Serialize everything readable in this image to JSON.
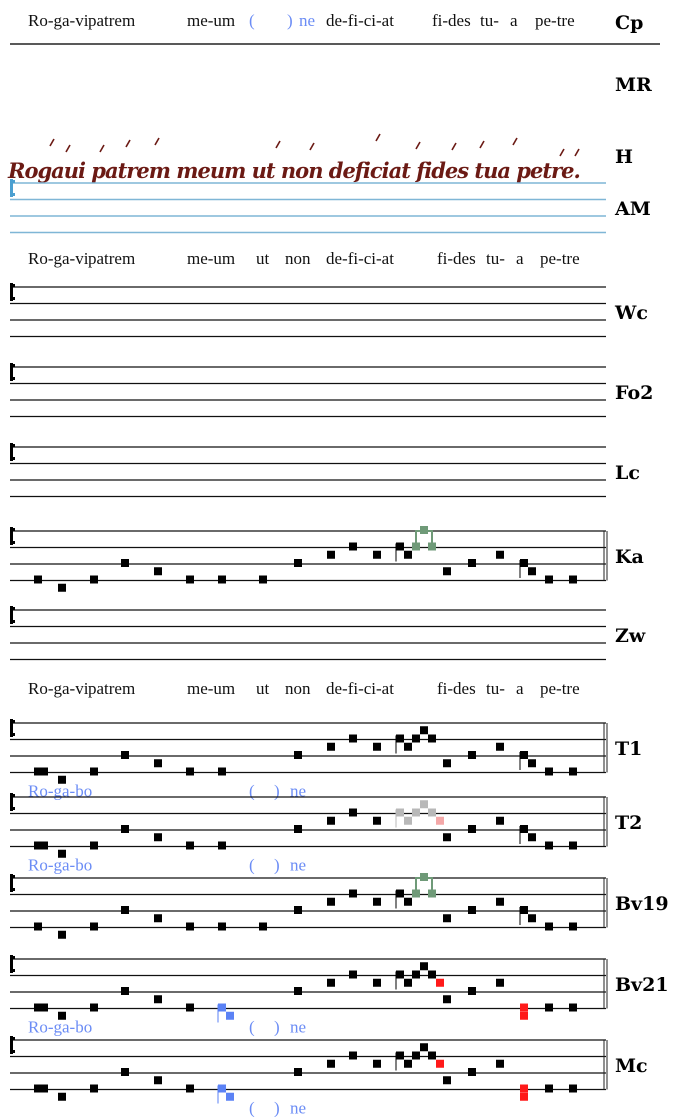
{
  "colors": {
    "k": "#000000",
    "g": "#6f9a78",
    "r": "#ff1a1a",
    "b": "#5b82f5",
    "y": "#b8b8b8",
    "p": "#f4a8a8",
    "ms_ink": "#6b1a14",
    "am_staff": "#7fb6d6"
  },
  "top_row": {
    "label": "Cp",
    "words": [
      {
        "t": "Ro-ga-vi"
      },
      {
        "t": "patrem"
      },
      {
        "t": "me-um"
      },
      {
        "t": "(",
        "blue": true
      },
      {
        "t": ")",
        "blue": true
      },
      {
        "t": "ne",
        "blue": true
      },
      {
        "t": "de-fi-ci-at"
      },
      {
        "t": "fi-des"
      },
      {
        "t": "tu-"
      },
      {
        "t": "a"
      },
      {
        "t": "pe-tre"
      }
    ]
  },
  "lyrics_row": [
    "Ro-ga-vi",
    "patrem",
    "me-um",
    "ut",
    "non",
    "de-fi-ci-at",
    "fi-des",
    "tu-",
    "a",
    "pe-tre"
  ],
  "mr_label": "MR",
  "h_row": {
    "label": "H",
    "manuscript_text": "Rogaui patrem meum ut non deficiat fides tua petre."
  },
  "variant": {
    "rogabo": "Ro-ga-bo",
    "paren_open": "(",
    "paren_close": ")",
    "ne": "ne"
  },
  "staves": [
    {
      "label": "AM",
      "type": "am",
      "notes": []
    },
    {
      "label": "Wc",
      "notes": []
    },
    {
      "label": "Fo2",
      "notes": []
    },
    {
      "label": "Lc",
      "notes": []
    },
    {
      "label": "Ka",
      "bar": true,
      "notes": [
        [
          0,
          0
        ],
        [
          2,
          -1
        ],
        [
          3,
          0
        ],
        [
          4,
          2
        ],
        [
          5,
          1
        ],
        [
          6,
          0
        ],
        [
          7,
          0
        ],
        [
          8,
          0
        ],
        [
          9,
          2
        ],
        [
          10,
          3
        ],
        [
          11,
          4
        ],
        [
          12,
          3
        ],
        [
          13,
          4,
          "k",
          1
        ],
        [
          14,
          3
        ],
        [
          15,
          4,
          "g"
        ],
        [
          16,
          6,
          "g"
        ],
        [
          17,
          4,
          "g"
        ],
        [
          19,
          1
        ],
        [
          20,
          2
        ],
        [
          21,
          3
        ],
        [
          22,
          2,
          "k",
          1
        ],
        [
          23,
          1
        ],
        [
          24,
          0
        ],
        [
          25,
          0
        ]
      ]
    },
    {
      "label": "Zw",
      "notes": []
    },
    {
      "label": "T1",
      "bar": true,
      "notes": [
        [
          0,
          0
        ],
        [
          1,
          0
        ],
        [
          2,
          -1
        ],
        [
          3,
          0
        ],
        [
          4,
          2
        ],
        [
          5,
          1
        ],
        [
          6,
          0
        ],
        [
          7,
          0
        ],
        [
          9,
          2
        ],
        [
          10,
          3
        ],
        [
          11,
          4
        ],
        [
          12,
          3
        ],
        [
          13,
          4,
          "k",
          1
        ],
        [
          14,
          3
        ],
        [
          15,
          4
        ],
        [
          16,
          5
        ],
        [
          17,
          4
        ],
        [
          19,
          1
        ],
        [
          20,
          2
        ],
        [
          21,
          3
        ],
        [
          22,
          2,
          "k",
          1
        ],
        [
          23,
          1
        ],
        [
          24,
          0
        ],
        [
          25,
          0
        ]
      ],
      "after": "both"
    },
    {
      "label": "T2",
      "bar": true,
      "notes": [
        [
          0,
          0
        ],
        [
          1,
          0
        ],
        [
          2,
          -1
        ],
        [
          3,
          0
        ],
        [
          4,
          2
        ],
        [
          5,
          1
        ],
        [
          6,
          0
        ],
        [
          7,
          0
        ],
        [
          9,
          2
        ],
        [
          10,
          3
        ],
        [
          11,
          4
        ],
        [
          12,
          3
        ],
        [
          13,
          4,
          "y",
          1
        ],
        [
          14,
          3,
          "y"
        ],
        [
          15,
          4,
          "y"
        ],
        [
          16,
          5,
          "y"
        ],
        [
          17,
          4,
          "y"
        ],
        [
          18,
          3,
          "p"
        ],
        [
          19,
          1
        ],
        [
          20,
          2
        ],
        [
          21,
          3
        ],
        [
          22,
          2,
          "k",
          1
        ],
        [
          23,
          1
        ],
        [
          24,
          0
        ],
        [
          25,
          0
        ]
      ],
      "after": "both"
    },
    {
      "label": "Bv19",
      "bar": true,
      "notes": [
        [
          0,
          0
        ],
        [
          2,
          -1
        ],
        [
          3,
          0
        ],
        [
          4,
          2
        ],
        [
          5,
          1
        ],
        [
          6,
          0
        ],
        [
          7,
          0
        ],
        [
          8,
          0
        ],
        [
          9,
          2
        ],
        [
          10,
          3
        ],
        [
          11,
          4
        ],
        [
          12,
          3
        ],
        [
          13,
          4,
          "k",
          1
        ],
        [
          14,
          3
        ],
        [
          15,
          4,
          "g"
        ],
        [
          16,
          6,
          "g"
        ],
        [
          17,
          4,
          "g"
        ],
        [
          19,
          1
        ],
        [
          20,
          2
        ],
        [
          21,
          3
        ],
        [
          22,
          2,
          "k",
          1
        ],
        [
          23,
          1
        ],
        [
          24,
          0
        ],
        [
          25,
          0
        ]
      ]
    },
    {
      "label": "Bv21",
      "bar": true,
      "notes": [
        [
          0,
          0
        ],
        [
          1,
          0
        ],
        [
          2,
          -1
        ],
        [
          3,
          0
        ],
        [
          4,
          2
        ],
        [
          5,
          1
        ],
        [
          6,
          0
        ],
        [
          7,
          0,
          "b",
          1
        ],
        [
          26,
          -1,
          "b"
        ],
        [
          9,
          2
        ],
        [
          10,
          3
        ],
        [
          11,
          4
        ],
        [
          12,
          3
        ],
        [
          13,
          4,
          "k",
          1
        ],
        [
          14,
          3
        ],
        [
          15,
          4
        ],
        [
          16,
          5
        ],
        [
          17,
          4
        ],
        [
          18,
          3,
          "r"
        ],
        [
          19,
          1
        ],
        [
          20,
          2
        ],
        [
          21,
          3
        ],
        [
          22,
          0,
          "r"
        ],
        [
          22,
          -1,
          "r"
        ],
        [
          24,
          0
        ],
        [
          25,
          0
        ]
      ],
      "after": "both"
    },
    {
      "label": "Mc",
      "bar": true,
      "notes": [
        [
          0,
          0
        ],
        [
          1,
          0
        ],
        [
          2,
          -1
        ],
        [
          3,
          0
        ],
        [
          4,
          2
        ],
        [
          5,
          1
        ],
        [
          6,
          0
        ],
        [
          7,
          0,
          "b",
          1
        ],
        [
          26,
          -1,
          "b"
        ],
        [
          9,
          2
        ],
        [
          10,
          3
        ],
        [
          11,
          4
        ],
        [
          12,
          3
        ],
        [
          13,
          4,
          "k",
          1
        ],
        [
          14,
          3
        ],
        [
          15,
          4
        ],
        [
          16,
          5
        ],
        [
          17,
          4
        ],
        [
          18,
          3,
          "r"
        ],
        [
          19,
          1
        ],
        [
          20,
          2
        ],
        [
          21,
          3
        ],
        [
          22,
          0,
          "r"
        ],
        [
          22,
          -1,
          "r"
        ],
        [
          24,
          0
        ],
        [
          25,
          0
        ]
      ],
      "after": "ne"
    }
  ]
}
